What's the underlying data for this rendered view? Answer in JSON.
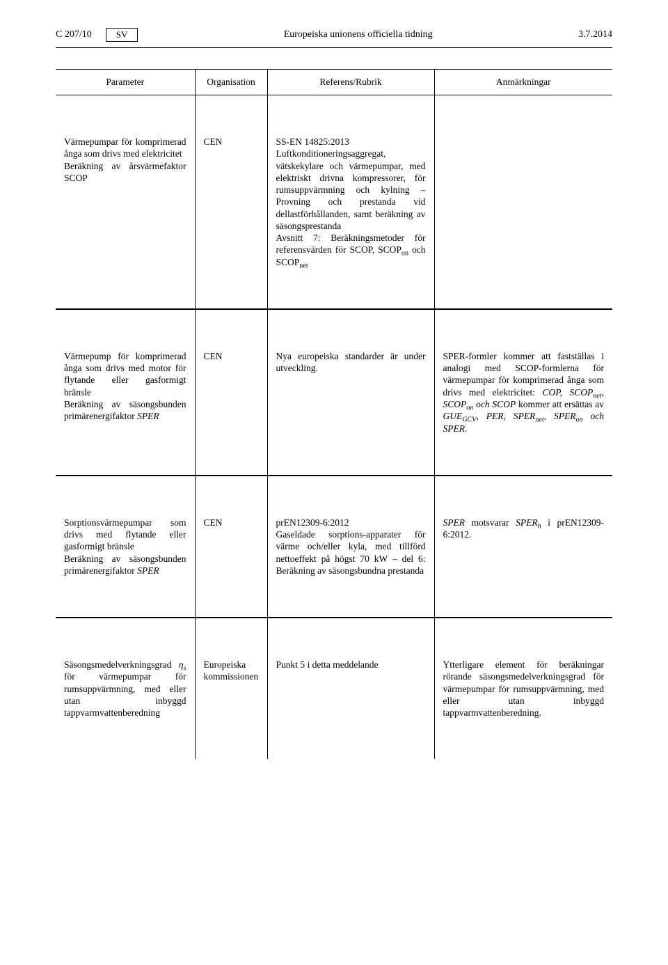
{
  "header": {
    "page_ref": "C 207/10",
    "lang": "SV",
    "journal": "Europeiska unionens officiella tidning",
    "date": "3.7.2014"
  },
  "table": {
    "headers": {
      "param": "Parameter",
      "org": "Organisation",
      "ref": "Referens/Rubrik",
      "notes": "Anmärkningar"
    },
    "rows": [
      {
        "param": "Värmepumpar för komprimerad ånga som drivs med elektricitet\nBeräkning av årsvärmefaktor SCOP",
        "org": "CEN",
        "ref_title": "SS-EN 14825:2013",
        "ref_body": "Luftkonditioneringsaggregat, vätskekylare och värmepumpar, med elektriskt drivna kompressorer, för rumsuppvärmning och kylning – Provning och prestanda vid dellastförhållanden, samt beräkning av säsongsprestanda",
        "ref_tail": "Avsnitt 7: Beräkningsmetoder för referensvärden för SCOP, SCOP",
        "ref_tail_sub1": "on",
        "ref_tail_mid": " och SCOP",
        "ref_tail_sub2": "net",
        "notes": ""
      },
      {
        "param_top": "Värmepump för komprimerad ånga som drivs med motor för flytande eller gasformigt bränsle",
        "param_bot_pre": "Beräkning av säsongsbunden primärenergifaktor ",
        "param_bot_it": "SPER",
        "org": "CEN",
        "ref": "Nya europeiska standarder är under utveckling.",
        "notes_pre": "SPER-formler kommer att fastställas i analogi med SCOP-formlerna för värmepumpar för komprimerad ånga som drivs med elektricitet: ",
        "notes_it": "COP, SCOP",
        "notes_sub1": "net",
        "notes_it2": ", SCOP",
        "notes_sub2": "on",
        "notes_it3": " och SCOP",
        "notes_mid": " kommer att ersättas av ",
        "notes_it4": "GUE",
        "notes_sub3": "GCV",
        "notes_it5": ", PER, SPER",
        "notes_sub4": "net",
        "notes_it6": ", SPER",
        "notes_sub5": "on",
        "notes_it7": " och SPER",
        "notes_end": "."
      },
      {
        "param_top": "Sorptionsvärmepumpar som drivs med flytande eller gasformigt bränsle",
        "param_bot_pre": "Beräkning av säsongsbunden primärenergifaktor ",
        "param_bot_it": "SPER",
        "org": "CEN",
        "ref_title": "prEN12309-6:2012",
        "ref_body": "Gaseldade sorptions-apparater för värme och/eller kyla, med tillförd nettoeffekt på högst 70 kW – del 6: Beräkning av säsongsbundna prestanda",
        "notes_it1": "SPER",
        "notes_txt1": " motsvarar ",
        "notes_it2": "SPER",
        "notes_sub": "h",
        "notes_txt2": " i prEN12309-6:2012."
      },
      {
        "param_pre": "Säsongsmedelverkningsgrad ",
        "param_it": "η",
        "param_sub": "s",
        "param_post": " för värmepumpar för rumsuppvärmning, med eller utan inbyggd tappvarmvattenberedning",
        "org": "Europeiska kommissionen",
        "ref": "Punkt 5 i detta meddelande",
        "notes": "Ytterligare element för beräkningar rörande säsongsmedelverkningsgrad för värmepumpar för rumsuppvärmning, med eller utan inbyggd tappvarmvattenberedning."
      }
    ]
  }
}
